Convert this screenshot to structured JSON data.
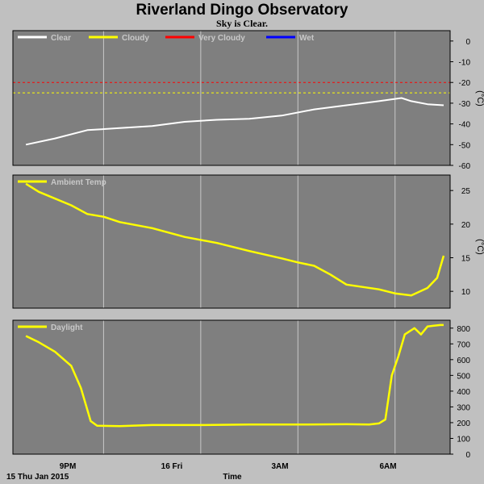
{
  "header": {
    "title": "Riverland Dingo Observatory",
    "subtitle": "Sky is Clear."
  },
  "footer": {
    "date_label": "15 Thu Jan 2015",
    "time_label": "Time"
  },
  "colors": {
    "plot_bg": "#7f7f7f",
    "frame_bg": "#c0c0c0",
    "grid": "#c8c8c8",
    "clear": "#ffffff",
    "cloudy": "#ffff00",
    "very_cloudy": "#ff0000",
    "wet": "#0000ff"
  },
  "chart_data": [
    {
      "type": "line",
      "ylabel": "(°C)",
      "ylim": [
        -60,
        5
      ],
      "yticks": [
        0,
        -10,
        -20,
        -30,
        -40,
        -50,
        -60
      ],
      "xticks": [
        "9PM",
        "16 Fri",
        "3AM",
        "6AM"
      ],
      "grid": true,
      "legend_position": "top-left",
      "legend": [
        {
          "label": "Clear",
          "color": "#ffffff"
        },
        {
          "label": "Cloudy",
          "color": "#ffff00"
        },
        {
          "label": "Very Cloudy",
          "color": "#ff0000"
        },
        {
          "label": "Wet",
          "color": "#0000ff"
        }
      ],
      "thresholds": [
        {
          "value": -20,
          "color": "#ff0000"
        },
        {
          "value": -25,
          "color": "#ffff00"
        }
      ],
      "series": [
        {
          "name": "Clear",
          "color": "#ffffff",
          "x_hours": [
            18.6,
            19.5,
            20.5,
            21.5,
            22.5,
            23.5,
            24.5,
            25.5,
            26.5,
            27.5,
            28.5,
            29.5,
            30.2,
            30.5,
            31.0,
            31.5
          ],
          "values": [
            -50,
            -47,
            -43,
            -42,
            -41,
            -39,
            -38,
            -37.5,
            -36,
            -33,
            -31,
            -29,
            -27.5,
            -29,
            -30.5,
            -31
          ]
        }
      ]
    },
    {
      "type": "line",
      "ylabel": "(°C)",
      "ylim": [
        8,
        27
      ],
      "yticks": [
        25,
        20,
        15,
        10
      ],
      "xticks": [
        "9PM",
        "16 Fri",
        "3AM",
        "6AM"
      ],
      "grid": true,
      "legend_position": "top-left",
      "legend": [
        {
          "label": "Ambient Temp",
          "color": "#ffff00"
        }
      ],
      "series": [
        {
          "name": "Ambient Temp",
          "color": "#ffff00",
          "x_hours": [
            18.6,
            19.0,
            20.0,
            20.5,
            21.0,
            21.5,
            22.5,
            23.5,
            24.5,
            25.5,
            26.5,
            27.0,
            27.5,
            28.0,
            28.5,
            29.5,
            30.0,
            30.5,
            31.0,
            31.3,
            31.5
          ],
          "values": [
            26,
            24.8,
            22.8,
            21.5,
            21.1,
            20.3,
            19.4,
            18.1,
            17.2,
            16.0,
            14.9,
            14.3,
            13.8,
            12.5,
            11.0,
            10.3,
            9.7,
            9.4,
            10.5,
            12.0,
            15.3
          ]
        }
      ]
    },
    {
      "type": "line",
      "ylim": [
        0,
        850
      ],
      "yticks": [
        800,
        700,
        600,
        500,
        400,
        300,
        200,
        100,
        0
      ],
      "xticks": [
        "9PM",
        "16 Fri",
        "3AM",
        "6AM"
      ],
      "grid": true,
      "legend_position": "top-left",
      "legend": [
        {
          "label": "Daylight",
          "color": "#ffff00"
        }
      ],
      "series": [
        {
          "name": "Daylight",
          "color": "#ffff00",
          "x_hours": [
            18.6,
            19.0,
            19.5,
            20.0,
            20.3,
            20.6,
            20.8,
            21.5,
            22.5,
            24.0,
            25.5,
            27.0,
            28.5,
            29.2,
            29.5,
            29.7,
            29.9,
            30.1,
            30.3,
            30.6,
            30.8,
            31.0,
            31.2,
            31.4,
            31.5
          ],
          "values": [
            750,
            710,
            650,
            560,
            420,
            210,
            180,
            178,
            185,
            185,
            188,
            188,
            190,
            188,
            195,
            220,
            500,
            620,
            760,
            800,
            760,
            810,
            815,
            820,
            820
          ]
        }
      ]
    }
  ]
}
